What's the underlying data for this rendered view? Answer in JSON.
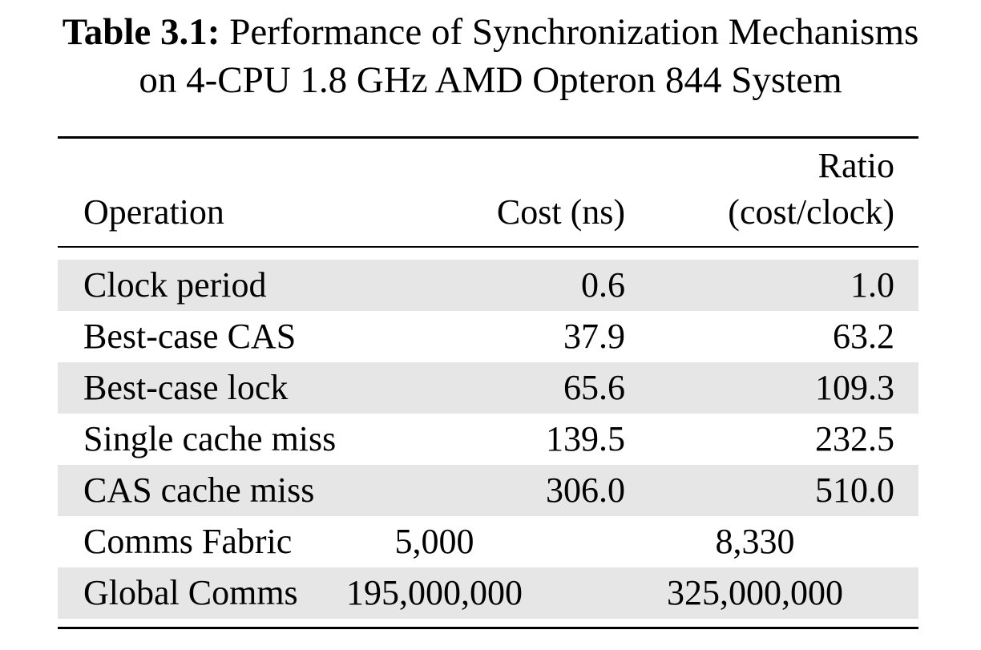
{
  "caption": {
    "label": "Table 3.1:",
    "title_line1": " Performance of Synchronization Mechanisms",
    "title_line2": "on 4-CPU 1.8 GHz AMD Opteron 844 System"
  },
  "table": {
    "headers": {
      "operation": "Operation",
      "cost": "Cost (ns)",
      "ratio_line1": "Ratio",
      "ratio_line2": "(cost/clock)"
    },
    "rows": [
      {
        "operation": "Clock period",
        "cost": "0.6",
        "ratio": "1.0"
      },
      {
        "operation": "Best-case CAS",
        "cost": "37.9",
        "ratio": "63.2"
      },
      {
        "operation": "Best-case lock",
        "cost": "65.6",
        "ratio": "109.3"
      },
      {
        "operation": "Single cache miss",
        "cost": "139.5",
        "ratio": "232.5"
      },
      {
        "operation": "CAS cache miss",
        "cost": "306.0",
        "ratio": "510.0"
      },
      {
        "operation": "Comms Fabric",
        "cost": "5,000",
        "ratio": "8,330"
      },
      {
        "operation": "Global Comms",
        "cost": "195,000,000",
        "ratio": "325,000,000"
      }
    ],
    "shading_color": "#e6e6e6"
  }
}
